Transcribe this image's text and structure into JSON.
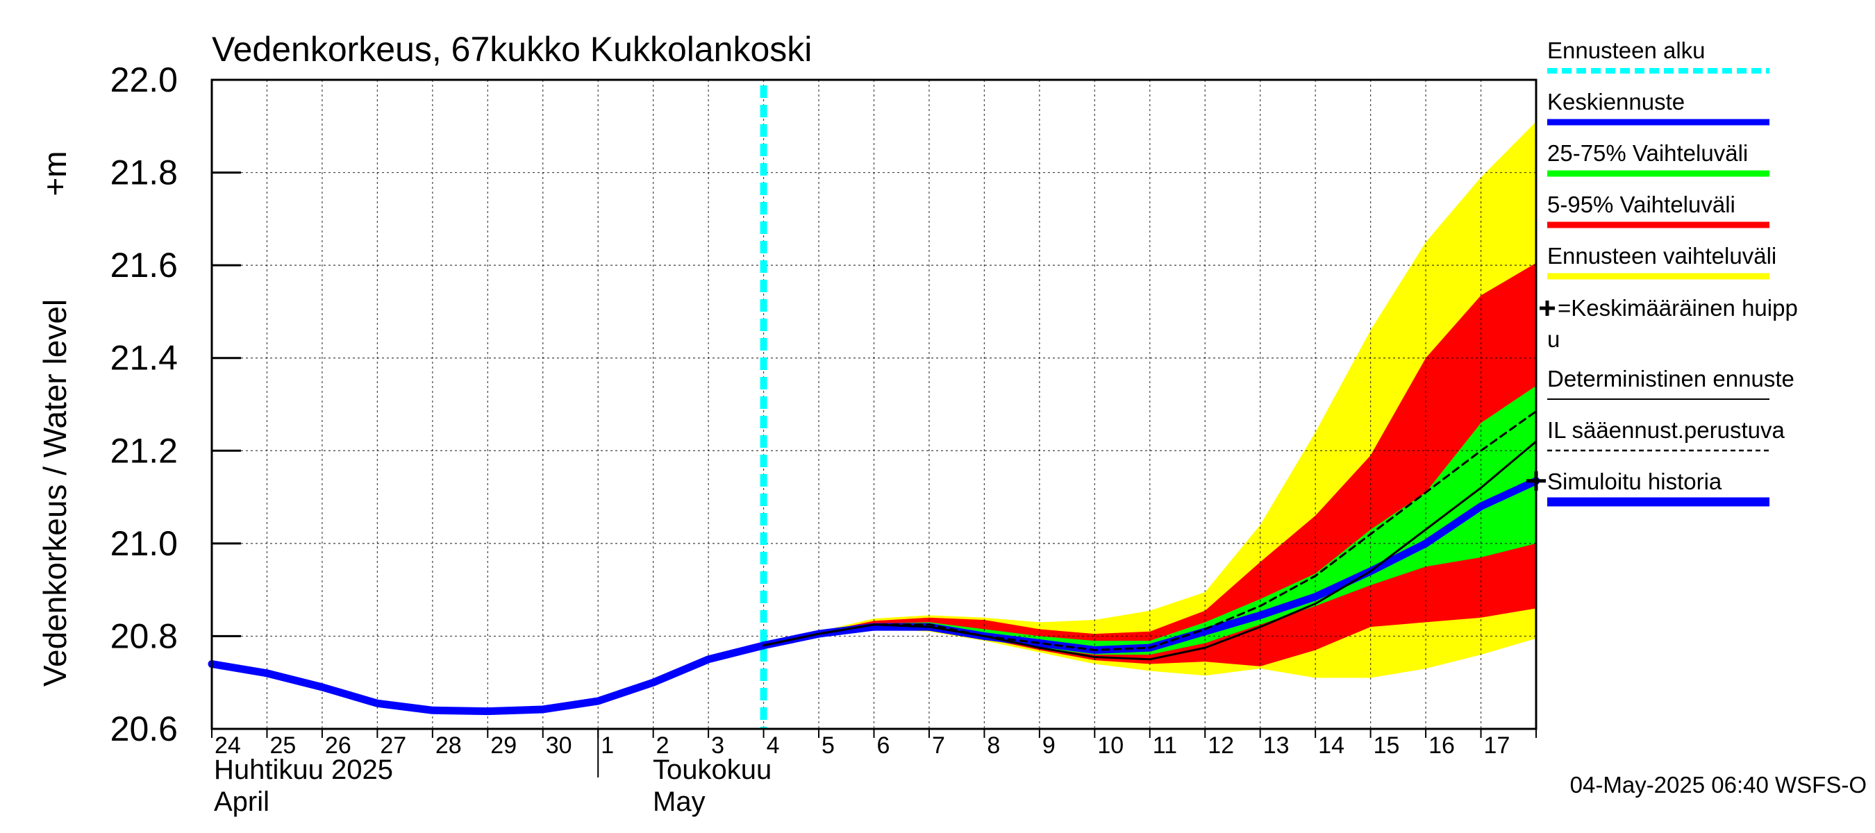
{
  "chart_data": {
    "type": "area",
    "title": "Vedenkorkeus, 67kukko Kukkolankoski",
    "ylabel": "Vedenkorkeus / Water level",
    "yunit": "+m",
    "ylim": [
      20.6,
      22.0
    ],
    "yticks": [
      "20.6",
      "20.8",
      "21.0",
      "21.2",
      "21.4",
      "21.6",
      "21.8",
      "22.0"
    ],
    "xlim": [
      0,
      24
    ],
    "day_labels": [
      "24",
      "25",
      "26",
      "27",
      "28",
      "29",
      "30",
      "1",
      "2",
      "3",
      "4",
      "5",
      "6",
      "7",
      "8",
      "9",
      "10",
      "11",
      "12",
      "13",
      "14",
      "15",
      "16",
      "17"
    ],
    "month_labels": {
      "april_fi": "Huhtikuu  2025",
      "april_en": "April",
      "may_fi": "Toukokuu",
      "may_en": "May"
    },
    "forecast_start_x": 10,
    "grid": true,
    "legend_position": "right",
    "timestamp": "04-May-2025 06:40 WSFS-O",
    "series": [
      {
        "name": "Simuloitu historia",
        "color": "#0000ff",
        "x": [
          0,
          1,
          2,
          3,
          4,
          5,
          6,
          7,
          8,
          9,
          10
        ],
        "y": [
          20.74,
          20.72,
          20.69,
          20.655,
          20.64,
          20.638,
          20.642,
          20.66,
          20.7,
          20.75,
          20.78
        ]
      },
      {
        "name": "Keskiennuste",
        "color": "#0000ff",
        "x": [
          10,
          11,
          12,
          13,
          14,
          15,
          16,
          17,
          18,
          19,
          20,
          21,
          22,
          23,
          24
        ],
        "y": [
          20.78,
          20.805,
          20.82,
          20.82,
          20.8,
          20.785,
          20.77,
          20.775,
          20.81,
          20.845,
          20.885,
          20.94,
          21.0,
          21.08,
          21.135
        ]
      },
      {
        "name": "Deterministinen ennuste",
        "color": "#000000",
        "x": [
          10,
          11,
          12,
          13,
          14,
          15,
          16,
          17,
          18,
          19,
          20,
          21,
          22,
          23,
          24
        ],
        "y": [
          20.78,
          20.805,
          20.825,
          20.82,
          20.8,
          20.775,
          20.755,
          20.75,
          20.775,
          20.82,
          20.87,
          20.94,
          21.03,
          21.12,
          21.22
        ]
      },
      {
        "name": "IL sääennust.perustuva",
        "color": "#000000",
        "x": [
          10,
          11,
          12,
          13,
          14,
          15,
          16,
          17,
          18,
          19,
          20,
          21,
          22,
          23,
          24
        ],
        "y": [
          20.78,
          20.805,
          20.825,
          20.825,
          20.8,
          20.785,
          20.77,
          20.775,
          20.815,
          20.865,
          20.93,
          21.02,
          21.11,
          21.2,
          21.285
        ]
      }
    ],
    "bands": [
      {
        "name": "Ennusteen vaihteluväli",
        "color": "#ffff00",
        "x": [
          10,
          11,
          12,
          13,
          14,
          15,
          16,
          17,
          18,
          19,
          20,
          21,
          22,
          23,
          24
        ],
        "upper": [
          20.78,
          20.81,
          20.838,
          20.845,
          20.84,
          20.83,
          20.835,
          20.855,
          20.895,
          21.04,
          21.24,
          21.46,
          21.65,
          21.79,
          21.91
        ],
        "lower": [
          20.78,
          20.8,
          20.815,
          20.81,
          20.79,
          20.765,
          20.74,
          20.725,
          20.715,
          20.73,
          20.71,
          20.71,
          20.73,
          20.76,
          20.795
        ]
      },
      {
        "name": "5-95% Vaihteluväli",
        "color": "#ff0000",
        "x": [
          10,
          11,
          12,
          13,
          14,
          15,
          16,
          17,
          18,
          19,
          20,
          21,
          22,
          23,
          24
        ],
        "upper": [
          20.78,
          20.808,
          20.833,
          20.84,
          20.835,
          20.815,
          20.805,
          20.81,
          20.855,
          20.96,
          21.06,
          21.19,
          21.4,
          21.535,
          21.605
        ],
        "lower": [
          20.78,
          20.802,
          20.818,
          20.815,
          20.795,
          20.77,
          20.748,
          20.74,
          20.745,
          20.735,
          20.77,
          20.82,
          20.83,
          20.84,
          20.86
        ]
      },
      {
        "name": "25-75% Vaihteluväli",
        "color": "#00ff00",
        "x": [
          10,
          11,
          12,
          13,
          14,
          15,
          16,
          17,
          18,
          19,
          20,
          21,
          22,
          23,
          24
        ],
        "upper": [
          20.78,
          20.806,
          20.827,
          20.83,
          20.815,
          20.8,
          20.79,
          20.79,
          20.83,
          20.88,
          20.935,
          21.03,
          21.11,
          21.26,
          21.34
        ],
        "lower": [
          20.78,
          20.804,
          20.822,
          20.815,
          20.8,
          20.775,
          20.76,
          20.76,
          20.785,
          20.825,
          20.865,
          20.91,
          20.95,
          20.97,
          21.0
        ]
      }
    ],
    "mean_peak_marker": {
      "x": 24,
      "y": 21.135
    },
    "legend": [
      {
        "label": "Ennusteen alku",
        "color": "#00ffff",
        "style": "dashed-thick"
      },
      {
        "label": "Keskiennuste",
        "color": "#0000ff",
        "style": "thick"
      },
      {
        "label": "25-75% Vaihteluväli",
        "color": "#00ff00",
        "style": "thick"
      },
      {
        "label": "5-95% Vaihteluväli",
        "color": "#ff0000",
        "style": "thick"
      },
      {
        "label": "Ennusteen vaihteluväli",
        "color": "#ffff00",
        "style": "thick"
      },
      {
        "label_line1": "=Keskimääräinen huipp",
        "label_line2": "u",
        "color": "#000000",
        "style": "plus"
      },
      {
        "label": "Deterministinen ennuste",
        "color": "#000000",
        "style": "thin"
      },
      {
        "label": "IL sääennust.perustuva",
        "color": "#000000",
        "style": "dashed-thin"
      },
      {
        "label": "Simuloitu historia",
        "color": "#0000ff",
        "style": "thick"
      }
    ]
  }
}
